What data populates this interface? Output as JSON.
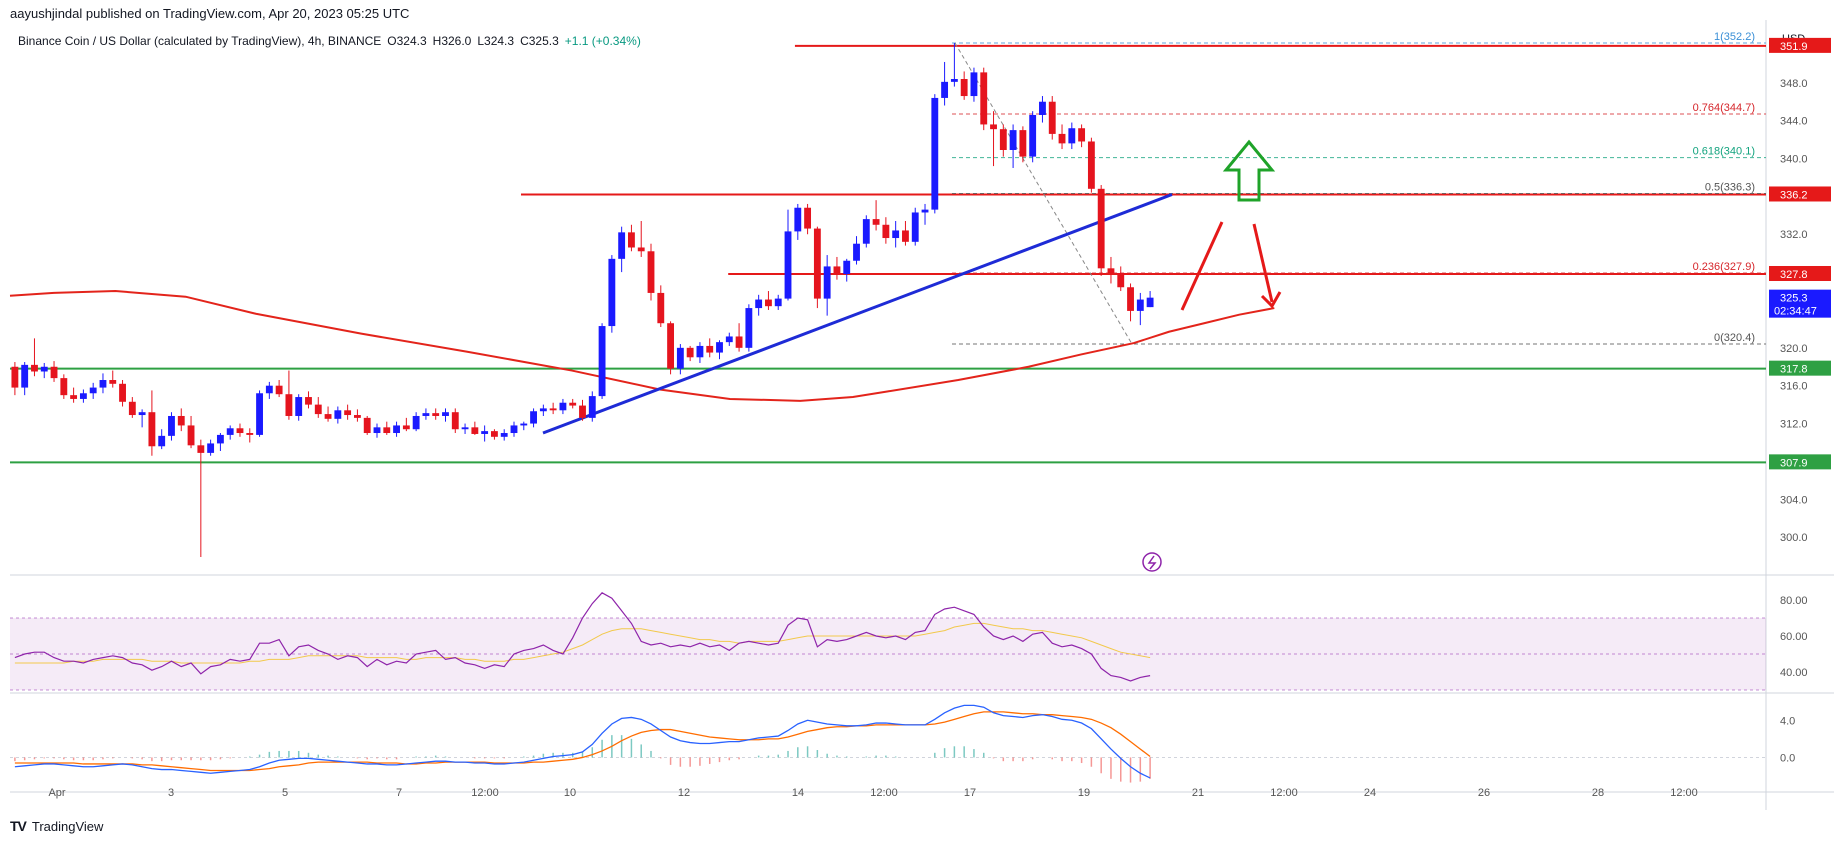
{
  "header": {
    "publisher": "aayushjindal published on TradingView.com, Apr 20, 2023 05:25 UTC"
  },
  "legend": {
    "symbol": "Binance Coin / US Dollar (calculated by TradingView), 4h, BINANCE",
    "open": "O324.3",
    "high": "H326.0",
    "low": "L324.3",
    "close": "C325.3",
    "change": "+1.1 (+0.34%)"
  },
  "footer": {
    "brand": "TradingView"
  },
  "colors": {
    "up": "#1a1aff",
    "down": "#e5141e",
    "resistance": "#e51919",
    "support": "#2ea043",
    "trendline": "#1e2bd6",
    "sma": "#e3241b",
    "rsi": "#8e24aa",
    "rsi_ma": "#f2c94c",
    "macd": "#2962ff",
    "signal": "#ff6d00",
    "arrow_up": "#1fa329",
    "current": "#1a1aff"
  },
  "chart_data": {
    "type": "candlestick",
    "currency_label": "USD",
    "price_axis": {
      "ylim": [
        296,
        354
      ],
      "ticks": [
        "348.0",
        "344.0",
        "340.0",
        "336.0",
        "332.0",
        "320.0",
        "316.0",
        "312.0",
        "304.0",
        "300.0"
      ]
    },
    "x_axis": {
      "ticks": [
        "Apr",
        "3",
        "5",
        "7",
        "12:00",
        "10",
        "12",
        "14",
        "12:00",
        "17",
        "19",
        "21",
        "12:00",
        "24",
        "26",
        "28",
        "12:00"
      ]
    },
    "price_tags": [
      {
        "label": "351.9",
        "value": 351.9,
        "color": "#e51919"
      },
      {
        "label": "336.2",
        "value": 336.2,
        "color": "#e51919"
      },
      {
        "label": "327.8",
        "value": 327.8,
        "color": "#e51919"
      },
      {
        "label": "325.3",
        "value": 325.3,
        "color": "#1a1aff",
        "sub": "02:34:47"
      },
      {
        "label": "317.8",
        "value": 317.8,
        "color": "#2ea043"
      },
      {
        "label": "307.9",
        "value": 307.9,
        "color": "#2ea043"
      }
    ],
    "horizontal_levels": [
      {
        "value": 351.9,
        "x_start": 0.447,
        "color": "#e51919"
      },
      {
        "value": 336.2,
        "x_start": 0.291,
        "color": "#e51919"
      },
      {
        "value": 327.8,
        "x_start": 0.409,
        "color": "#e51919"
      },
      {
        "value": 317.8,
        "x_start": 0.0,
        "color": "#2ea043"
      },
      {
        "value": 307.9,
        "x_start": 0.0,
        "color": "#2ea043"
      }
    ],
    "fibonacci": [
      {
        "label": "1(352.2)",
        "value": 352.2,
        "color": "#3a8fd6"
      },
      {
        "label": "0.764(344.7)",
        "value": 344.7,
        "color": "#d6262b"
      },
      {
        "label": "0.618(340.1)",
        "value": 340.1,
        "color": "#12a37e"
      },
      {
        "label": "0.5(336.3)",
        "value": 336.3,
        "color": "#555555"
      },
      {
        "label": "0.236(327.9)",
        "value": 327.9,
        "color": "#d6262b"
      },
      {
        "label": "0(320.4)",
        "value": 320.4,
        "color": "#555555"
      }
    ],
    "trendline": {
      "from": [
        0,
        311.0
      ],
      "to": [
        1,
        336.2
      ]
    },
    "candles": [
      [
        318.0,
        318.5,
        315.0,
        315.8
      ],
      [
        315.8,
        318.5,
        315.0,
        318.2
      ],
      [
        318.2,
        321.0,
        317.0,
        317.5
      ],
      [
        317.5,
        318.4,
        316.8,
        318.0
      ],
      [
        318.0,
        318.6,
        316.4,
        316.8
      ],
      [
        316.8,
        317.2,
        314.6,
        315.0
      ],
      [
        315.0,
        315.8,
        314.2,
        314.6
      ],
      [
        314.6,
        315.6,
        314.2,
        315.2
      ],
      [
        315.2,
        316.3,
        314.6,
        315.8
      ],
      [
        315.8,
        317.3,
        315.2,
        316.6
      ],
      [
        316.6,
        317.6,
        315.8,
        316.2
      ],
      [
        316.2,
        316.6,
        313.8,
        314.3
      ],
      [
        314.3,
        314.8,
        312.6,
        312.9
      ],
      [
        312.9,
        313.5,
        311.6,
        313.2
      ],
      [
        313.2,
        315.5,
        308.6,
        309.6
      ],
      [
        309.6,
        311.4,
        309.3,
        310.7
      ],
      [
        310.7,
        313.2,
        310.2,
        312.8
      ],
      [
        312.8,
        313.6,
        311.2,
        311.8
      ],
      [
        311.8,
        312.8,
        309.4,
        309.7
      ],
      [
        309.7,
        310.3,
        297.9,
        308.9
      ],
      [
        308.9,
        310.3,
        308.6,
        309.9
      ],
      [
        309.9,
        311.0,
        309.1,
        310.8
      ],
      [
        310.8,
        311.8,
        310.3,
        311.5
      ],
      [
        311.5,
        312.0,
        310.6,
        311.0
      ],
      [
        311.0,
        311.5,
        310.0,
        310.8
      ],
      [
        310.8,
        315.5,
        310.6,
        315.2
      ],
      [
        315.2,
        316.4,
        314.6,
        316.0
      ],
      [
        316.0,
        316.6,
        314.8,
        315.1
      ],
      [
        315.1,
        317.6,
        312.4,
        312.8
      ],
      [
        312.8,
        315.1,
        312.3,
        314.8
      ],
      [
        314.8,
        315.4,
        313.6,
        314.0
      ],
      [
        314.0,
        314.8,
        312.6,
        313.0
      ],
      [
        313.0,
        313.8,
        312.2,
        312.5
      ],
      [
        312.5,
        313.8,
        312.0,
        313.4
      ],
      [
        313.4,
        314.0,
        312.4,
        312.9
      ],
      [
        312.9,
        313.5,
        312.2,
        312.6
      ],
      [
        312.6,
        312.8,
        310.8,
        311.0
      ],
      [
        311.0,
        312.0,
        310.5,
        311.6
      ],
      [
        311.6,
        312.2,
        310.8,
        311.0
      ],
      [
        311.0,
        312.2,
        310.6,
        311.8
      ],
      [
        311.8,
        312.6,
        311.2,
        311.4
      ],
      [
        311.4,
        313.2,
        311.2,
        312.8
      ],
      [
        312.8,
        313.6,
        312.4,
        313.1
      ],
      [
        313.1,
        313.6,
        312.4,
        312.8
      ],
      [
        312.8,
        313.6,
        312.2,
        313.2
      ],
      [
        313.2,
        313.6,
        311.0,
        311.4
      ],
      [
        311.4,
        312.0,
        310.9,
        311.6
      ],
      [
        311.6,
        312.2,
        310.8,
        310.9
      ],
      [
        310.9,
        311.8,
        310.1,
        311.2
      ],
      [
        311.2,
        311.4,
        310.3,
        310.6
      ],
      [
        310.6,
        311.4,
        310.2,
        311.0
      ],
      [
        311.0,
        312.2,
        310.6,
        311.8
      ],
      [
        311.8,
        312.2,
        311.3,
        312.0
      ],
      [
        312.0,
        313.6,
        311.6,
        313.3
      ],
      [
        313.3,
        314.0,
        312.8,
        313.6
      ],
      [
        313.6,
        314.2,
        313.0,
        313.4
      ],
      [
        313.4,
        314.6,
        313.0,
        314.2
      ],
      [
        314.2,
        314.6,
        313.6,
        313.9
      ],
      [
        313.9,
        314.5,
        312.3,
        312.6
      ],
      [
        312.6,
        315.4,
        312.2,
        314.9
      ],
      [
        314.9,
        322.6,
        314.6,
        322.3
      ],
      [
        322.3,
        329.8,
        321.6,
        329.4
      ],
      [
        329.4,
        332.8,
        328.0,
        332.2
      ],
      [
        332.2,
        333.0,
        330.2,
        330.6
      ],
      [
        330.6,
        333.4,
        329.6,
        330.2
      ],
      [
        330.2,
        331.0,
        325.0,
        325.8
      ],
      [
        325.8,
        326.6,
        322.2,
        322.6
      ],
      [
        322.6,
        322.8,
        317.2,
        317.8
      ],
      [
        317.8,
        320.4,
        317.2,
        320.0
      ],
      [
        320.0,
        320.2,
        318.6,
        319.0
      ],
      [
        319.0,
        320.6,
        318.4,
        320.2
      ],
      [
        320.2,
        321.0,
        319.0,
        319.5
      ],
      [
        319.5,
        320.8,
        318.8,
        320.6
      ],
      [
        320.6,
        321.6,
        320.2,
        321.2
      ],
      [
        321.2,
        322.6,
        319.6,
        320.0
      ],
      [
        320.0,
        324.6,
        319.6,
        324.2
      ],
      [
        324.2,
        325.6,
        323.4,
        325.1
      ],
      [
        325.1,
        326.0,
        324.0,
        324.4
      ],
      [
        324.4,
        325.6,
        324.0,
        325.2
      ],
      [
        325.2,
        334.6,
        325.0,
        332.3
      ],
      [
        332.3,
        335.2,
        331.4,
        334.8
      ],
      [
        334.8,
        335.2,
        332.0,
        332.6
      ],
      [
        332.6,
        332.8,
        324.2,
        325.2
      ],
      [
        325.2,
        329.8,
        323.4,
        328.6
      ],
      [
        328.6,
        329.6,
        327.2,
        327.8
      ],
      [
        327.8,
        329.4,
        327.0,
        329.2
      ],
      [
        329.2,
        331.8,
        328.8,
        331.0
      ],
      [
        331.0,
        334.0,
        330.6,
        333.6
      ],
      [
        333.6,
        335.6,
        332.4,
        333.0
      ],
      [
        333.0,
        333.8,
        331.0,
        331.6
      ],
      [
        331.6,
        333.4,
        330.6,
        332.4
      ],
      [
        332.4,
        333.4,
        330.8,
        331.2
      ],
      [
        331.2,
        334.8,
        330.8,
        334.3
      ],
      [
        334.3,
        335.2,
        333.0,
        334.6
      ],
      [
        334.6,
        346.8,
        334.2,
        346.4
      ],
      [
        346.4,
        350.2,
        345.6,
        348.1
      ],
      [
        348.1,
        352.2,
        347.6,
        348.4
      ],
      [
        348.4,
        349.2,
        346.2,
        346.6
      ],
      [
        346.6,
        349.6,
        346.0,
        349.1
      ],
      [
        349.1,
        349.6,
        343.0,
        343.6
      ],
      [
        343.6,
        345.0,
        339.2,
        343.1
      ],
      [
        343.1,
        343.6,
        340.2,
        340.9
      ],
      [
        340.9,
        343.6,
        339.0,
        343.0
      ],
      [
        343.0,
        343.4,
        339.6,
        340.2
      ],
      [
        340.2,
        345.0,
        339.6,
        344.6
      ],
      [
        344.6,
        346.6,
        343.8,
        346.0
      ],
      [
        346.0,
        346.6,
        342.0,
        342.6
      ],
      [
        342.6,
        343.6,
        341.0,
        341.6
      ],
      [
        341.6,
        343.8,
        341.0,
        343.2
      ],
      [
        343.2,
        343.6,
        341.2,
        341.8
      ],
      [
        341.8,
        342.2,
        336.4,
        336.8
      ],
      [
        336.8,
        337.2,
        327.6,
        328.4
      ],
      [
        328.4,
        329.6,
        326.8,
        327.9
      ],
      [
        327.9,
        328.6,
        326.0,
        326.4
      ],
      [
        326.4,
        326.8,
        322.8,
        323.9
      ],
      [
        323.9,
        325.8,
        322.4,
        325.1
      ],
      [
        324.3,
        326.0,
        324.3,
        325.3
      ]
    ],
    "sma": [
      [
        0,
        325.5
      ],
      [
        0.025,
        325.8
      ],
      [
        0.06,
        326.0
      ],
      [
        0.1,
        325.4
      ],
      [
        0.14,
        323.6
      ],
      [
        0.2,
        321.5
      ],
      [
        0.26,
        319.6
      ],
      [
        0.32,
        317.6
      ],
      [
        0.37,
        315.6
      ],
      [
        0.41,
        314.6
      ],
      [
        0.45,
        314.4
      ],
      [
        0.48,
        314.8
      ],
      [
        0.5,
        315.4
      ],
      [
        0.54,
        316.6
      ],
      [
        0.58,
        318.0
      ],
      [
        0.61,
        319.3
      ],
      [
        0.64,
        320.5
      ],
      [
        0.66,
        321.7
      ],
      [
        0.68,
        322.6
      ],
      [
        0.7,
        323.5
      ],
      [
        0.72,
        324.2
      ]
    ],
    "rsi": {
      "ylim": [
        30,
        90
      ],
      "ticks": [
        "80.00",
        "60.00",
        "40.00"
      ],
      "band": [
        30,
        70
      ],
      "values": [
        48,
        50,
        51,
        51,
        48,
        46,
        46,
        45,
        47,
        48,
        49,
        48,
        45,
        44,
        41,
        43,
        46,
        43,
        45,
        39,
        43,
        44,
        47,
        46,
        47,
        56,
        56,
        58,
        49,
        54,
        55,
        52,
        50,
        47,
        49,
        48,
        43,
        47,
        44,
        46,
        45,
        50,
        51,
        52,
        47,
        48,
        45,
        44,
        42,
        44,
        43,
        50,
        52,
        53,
        55,
        52,
        50,
        59,
        70,
        78,
        84,
        81,
        74,
        67,
        57,
        55,
        56,
        54,
        55,
        54,
        56,
        54,
        55,
        52,
        56,
        57,
        56,
        55,
        56,
        66,
        70,
        69,
        54,
        58,
        57,
        58,
        60,
        62,
        60,
        59,
        60,
        58,
        62,
        63,
        72,
        75,
        76,
        74,
        72,
        65,
        60,
        58,
        60,
        57,
        61,
        62,
        56,
        54,
        55,
        53,
        50,
        42,
        38,
        37,
        35,
        37,
        38
      ],
      "ma_values": [
        45,
        45,
        45,
        45,
        45,
        45,
        46,
        46,
        46,
        47,
        47,
        47,
        47,
        47,
        46,
        46,
        46,
        45,
        45,
        45,
        45,
        45,
        45,
        45,
        46,
        46,
        47,
        47,
        47,
        48,
        49,
        49,
        49,
        49,
        49,
        49,
        48,
        48,
        48,
        48,
        47,
        47,
        48,
        48,
        48,
        48,
        47,
        47,
        46,
        46,
        46,
        47,
        47,
        48,
        49,
        50,
        51,
        53,
        55,
        58,
        61,
        63,
        64,
        64,
        64,
        63,
        62,
        61,
        60,
        59,
        58,
        58,
        57,
        57,
        56,
        57,
        57,
        57,
        57,
        58,
        59,
        60,
        60,
        60,
        60,
        60,
        60,
        60,
        60,
        60,
        60,
        60,
        60,
        61,
        62,
        63,
        65,
        66,
        67,
        67,
        66,
        65,
        64,
        64,
        63,
        63,
        62,
        61,
        60,
        59,
        57,
        55,
        53,
        51,
        50,
        49,
        48
      ]
    },
    "macd": {
      "ylim": [
        -3.5,
        6.5
      ],
      "ticks": [
        "4.0",
        "0.0"
      ],
      "macd_values": [
        -1.0,
        -0.9,
        -0.8,
        -0.7,
        -0.7,
        -0.8,
        -0.9,
        -1.0,
        -1.0,
        -0.9,
        -0.8,
        -0.7,
        -0.8,
        -1.0,
        -1.2,
        -1.3,
        -1.3,
        -1.4,
        -1.5,
        -1.6,
        -1.7,
        -1.6,
        -1.5,
        -1.4,
        -1.3,
        -1.0,
        -0.6,
        -0.3,
        -0.2,
        -0.1,
        -0.1,
        -0.2,
        -0.3,
        -0.4,
        -0.5,
        -0.6,
        -0.7,
        -0.7,
        -0.8,
        -0.8,
        -0.7,
        -0.6,
        -0.5,
        -0.4,
        -0.4,
        -0.5,
        -0.5,
        -0.6,
        -0.6,
        -0.7,
        -0.7,
        -0.6,
        -0.5,
        -0.3,
        -0.1,
        0.1,
        0.2,
        0.3,
        0.6,
        1.4,
        2.6,
        3.6,
        4.2,
        4.3,
        4.1,
        3.6,
        2.9,
        2.2,
        1.8,
        1.6,
        1.5,
        1.5,
        1.6,
        1.7,
        1.7,
        1.9,
        2.1,
        2.2,
        2.3,
        2.9,
        3.6,
        4.0,
        3.8,
        3.6,
        3.5,
        3.4,
        3.4,
        3.5,
        3.7,
        3.7,
        3.6,
        3.5,
        3.5,
        3.5,
        4.1,
        4.8,
        5.3,
        5.6,
        5.6,
        5.4,
        4.8,
        4.5,
        4.4,
        4.3,
        4.5,
        4.6,
        4.4,
        4.1,
        4.0,
        3.7,
        3.1,
        2.0,
        0.9,
        -0.1,
        -1.0,
        -1.7,
        -2.2
      ],
      "signal_values": [
        -0.6,
        -0.6,
        -0.6,
        -0.6,
        -0.6,
        -0.6,
        -0.6,
        -0.7,
        -0.7,
        -0.7,
        -0.7,
        -0.7,
        -0.7,
        -0.8,
        -0.8,
        -0.9,
        -1.0,
        -1.1,
        -1.2,
        -1.3,
        -1.4,
        -1.4,
        -1.4,
        -1.4,
        -1.4,
        -1.3,
        -1.2,
        -1.0,
        -0.9,
        -0.8,
        -0.6,
        -0.5,
        -0.5,
        -0.5,
        -0.5,
        -0.5,
        -0.5,
        -0.6,
        -0.6,
        -0.6,
        -0.7,
        -0.7,
        -0.6,
        -0.6,
        -0.5,
        -0.5,
        -0.5,
        -0.5,
        -0.5,
        -0.6,
        -0.6,
        -0.6,
        -0.6,
        -0.5,
        -0.5,
        -0.4,
        -0.3,
        -0.2,
        0.0,
        0.3,
        0.7,
        1.2,
        1.8,
        2.3,
        2.7,
        2.9,
        3.0,
        3.0,
        2.8,
        2.6,
        2.4,
        2.2,
        2.1,
        2.0,
        1.9,
        1.9,
        1.9,
        2.0,
        2.0,
        2.2,
        2.5,
        2.8,
        3.0,
        3.2,
        3.3,
        3.3,
        3.4,
        3.4,
        3.5,
        3.5,
        3.5,
        3.5,
        3.5,
        3.5,
        3.6,
        3.8,
        4.1,
        4.4,
        4.7,
        4.9,
        4.9,
        4.9,
        4.8,
        4.7,
        4.7,
        4.6,
        4.6,
        4.5,
        4.4,
        4.3,
        4.1,
        3.7,
        3.2,
        2.5,
        1.7,
        0.9,
        0.1
      ]
    }
  }
}
